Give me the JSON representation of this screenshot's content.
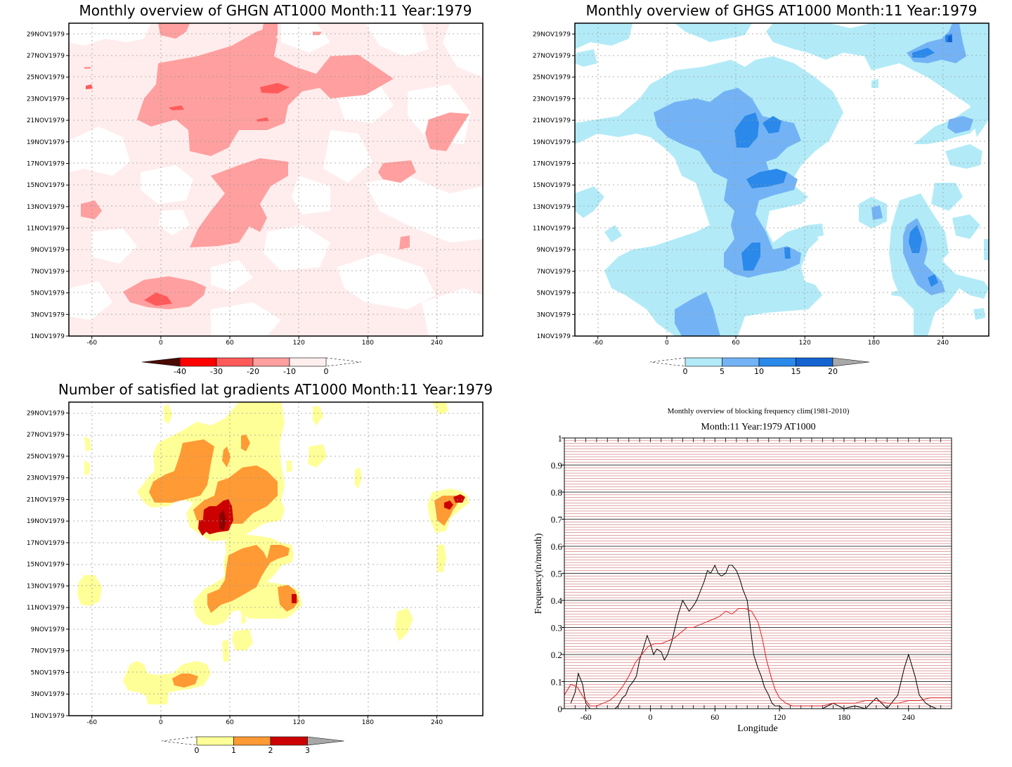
{
  "chart_data": [
    {
      "type": "heatmap",
      "title": "Monthly overview of GHGN AT1000 Month:11 Year:1979",
      "x_ticks": [
        "-60",
        "0",
        "60",
        "120",
        "180",
        "240"
      ],
      "xlim": [
        -80,
        280
      ],
      "y_ticks": [
        "1NOV1979",
        "3NOV1979",
        "5NOV1979",
        "7NOV1979",
        "9NOV1979",
        "11NOV1979",
        "13NOV1979",
        "15NOV1979",
        "17NOV1979",
        "19NOV1979",
        "21NOV1979",
        "23NOV1979",
        "25NOV1979",
        "27NOV1979",
        "29NOV1979"
      ],
      "grid": true,
      "colorbar": {
        "labels": [
          "-40",
          "-30",
          "-20",
          "-10",
          "0"
        ],
        "colors": [
          "#4a0a04",
          "#ff0000",
          "#ff5a5a",
          "#ff9f9f",
          "#ffeeee"
        ]
      },
      "contour_colors": [
        "#ffeded",
        "#ff9f9f",
        "#ff5a5a",
        "#ee1c1c"
      ]
    },
    {
      "type": "heatmap",
      "title": "Monthly overview of GHGS AT1000 Month:11 Year:1979",
      "x_ticks": [
        "-60",
        "0",
        "60",
        "120",
        "180",
        "240"
      ],
      "xlim": [
        -80,
        280
      ],
      "y_ticks": [
        "1NOV1979",
        "3NOV1979",
        "5NOV1979",
        "7NOV1979",
        "9NOV1979",
        "11NOV1979",
        "13NOV1979",
        "15NOV1979",
        "17NOV1979",
        "19NOV1979",
        "21NOV1979",
        "23NOV1979",
        "25NOV1979",
        "27NOV1979",
        "29NOV1979"
      ],
      "grid": true,
      "colorbar": {
        "labels": [
          "0",
          "5",
          "10",
          "15",
          "20"
        ],
        "colors": [
          "#b2ebf7",
          "#73b3f5",
          "#2a89ea",
          "#1463d0",
          "#a8a8a8"
        ]
      },
      "contour_colors": [
        "#b2ebf7",
        "#73b3f5",
        "#2a89ea",
        "#1463d0"
      ]
    },
    {
      "type": "heatmap",
      "title": "Number of satisfied lat gradients AT1000 Month:11 Year:1979",
      "x_ticks": [
        "-60",
        "0",
        "60",
        "120",
        "180",
        "240"
      ],
      "xlim": [
        -80,
        280
      ],
      "y_ticks": [
        "1NOV1979",
        "3NOV1979",
        "5NOV1979",
        "7NOV1979",
        "9NOV1979",
        "11NOV1979",
        "13NOV1979",
        "15NOV1979",
        "17NOV1979",
        "19NOV1979",
        "21NOV1979",
        "23NOV1979",
        "25NOV1979",
        "27NOV1979",
        "29NOV1979"
      ],
      "grid": true,
      "colorbar": {
        "labels": [
          "0",
          "1",
          "2",
          "3"
        ],
        "colors": [
          "#ffff98",
          "#ff9a34",
          "#cc0000",
          "#a8a8a8"
        ]
      },
      "contour_colors": [
        "#ffff98",
        "#ff9a34",
        "#cc0000",
        "#8b0000"
      ]
    },
    {
      "type": "line",
      "title": "Monthly overview of blocking frequency clim(1981-2010)",
      "subtitle": "Month:11 Year:1979  AT1000",
      "xlabel": "Longitude",
      "ylabel": "Frequency(n/month)",
      "xlim": [
        -80,
        280
      ],
      "ylim": [
        0,
        1
      ],
      "x_ticks": [
        "-60",
        "0",
        "60",
        "120",
        "180",
        "240"
      ],
      "y_ticks": [
        "0",
        "0.1",
        "0.2",
        "0.3",
        "0.4",
        "0.5",
        "0.6",
        "0.7",
        "0.8",
        "0.9",
        "1"
      ],
      "grid": true,
      "series": [
        {
          "color": "#000000",
          "x": [
            -74,
            -70,
            -67,
            -63,
            -60,
            -56,
            -53,
            -50,
            -46,
            -43,
            -40,
            -36,
            -33,
            -30,
            -26,
            -23,
            -20,
            -16,
            -13,
            -10,
            -6,
            -3,
            0,
            3,
            6,
            10,
            13,
            16,
            20,
            23,
            26,
            30,
            33,
            36,
            40,
            43,
            46,
            50,
            53,
            56,
            60,
            63,
            66,
            70,
            73,
            76,
            80,
            83,
            86,
            90,
            93,
            96,
            100,
            103,
            106,
            110,
            113,
            116,
            120,
            123,
            126,
            130,
            140,
            150,
            160,
            170,
            180,
            190,
            200,
            210,
            220,
            230,
            236,
            240,
            246,
            250,
            256,
            260,
            266,
            270
          ],
          "y": [
            0.02,
            0.06,
            0.13,
            0.09,
            0.02,
            0.0,
            0.0,
            0.0,
            0.0,
            0.0,
            0.0,
            0.0,
            0.0,
            0.01,
            0.04,
            0.05,
            0.08,
            0.1,
            0.12,
            0.18,
            0.23,
            0.27,
            0.24,
            0.2,
            0.22,
            0.21,
            0.18,
            0.2,
            0.25,
            0.3,
            0.35,
            0.4,
            0.38,
            0.36,
            0.38,
            0.4,
            0.43,
            0.47,
            0.51,
            0.5,
            0.53,
            0.5,
            0.49,
            0.5,
            0.53,
            0.53,
            0.51,
            0.48,
            0.44,
            0.4,
            0.3,
            0.2,
            0.15,
            0.12,
            0.08,
            0.05,
            0.02,
            0.01,
            0.01,
            0.0,
            0.0,
            0.0,
            0.0,
            0.0,
            0.0,
            0.02,
            0.0,
            0.01,
            0.0,
            0.04,
            0.0,
            0.05,
            0.15,
            0.2,
            0.12,
            0.05,
            0.02,
            0.01,
            0.0,
            0.0
          ],
          "x_over_y_note": ""
        },
        {
          "color": "#e02020",
          "x": [
            -80,
            -74,
            -68,
            -62,
            -56,
            -50,
            -44,
            -38,
            -32,
            -26,
            -20,
            -14,
            -8,
            -2,
            4,
            10,
            16,
            22,
            28,
            34,
            40,
            46,
            52,
            58,
            64,
            70,
            76,
            82,
            88,
            94,
            100,
            104,
            108,
            112,
            116,
            120,
            126,
            132,
            140,
            150,
            160,
            170,
            180,
            190,
            200,
            210,
            220,
            230,
            240,
            250,
            260,
            270,
            280
          ],
          "y": [
            0.05,
            0.09,
            0.08,
            0.04,
            0.01,
            0.01,
            0.02,
            0.03,
            0.05,
            0.08,
            0.12,
            0.17,
            0.2,
            0.23,
            0.24,
            0.24,
            0.25,
            0.26,
            0.28,
            0.3,
            0.3,
            0.31,
            0.32,
            0.33,
            0.34,
            0.36,
            0.35,
            0.37,
            0.37,
            0.36,
            0.32,
            0.26,
            0.18,
            0.12,
            0.07,
            0.04,
            0.02,
            0.01,
            0.01,
            0.01,
            0.01,
            0.02,
            0.02,
            0.02,
            0.03,
            0.03,
            0.02,
            0.02,
            0.03,
            0.03,
            0.04,
            0.04,
            0.04
          ]
        }
      ]
    }
  ]
}
